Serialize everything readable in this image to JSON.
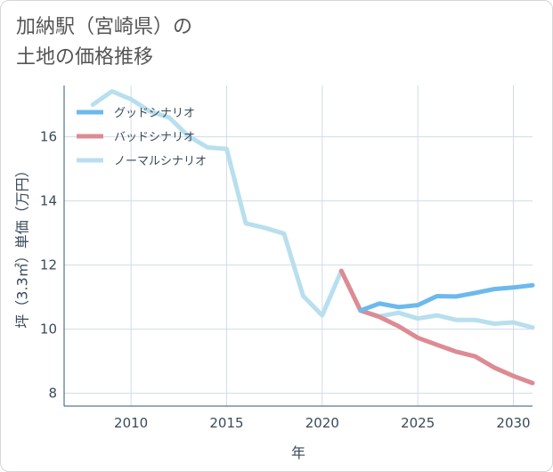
{
  "title": {
    "line1": "加納駅（宮崎県）の",
    "line2": "土地の価格推移"
  },
  "chart_data": {
    "type": "line",
    "xlabel": "年",
    "ylabel": "坪（3.3㎡）単価（万円）",
    "xlim": [
      2006.5,
      2031
    ],
    "ylim": [
      7.6,
      17.6
    ],
    "x_ticks": [
      2010,
      2015,
      2020,
      2025,
      2030
    ],
    "y_ticks": [
      8,
      10,
      12,
      14,
      16
    ],
    "grid": true,
    "legend_position": "top-left",
    "series": [
      {
        "name": "グッドシナリオ",
        "color": "#6cb9ed",
        "x": [
          2022,
          2023,
          2024,
          2025,
          2026,
          2027,
          2028,
          2029,
          2030,
          2031
        ],
        "y": [
          10.58,
          10.8,
          10.69,
          10.75,
          11.03,
          11.02,
          11.13,
          11.25,
          11.3,
          11.37
        ]
      },
      {
        "name": "バッドシナリオ",
        "color": "#dd8b93",
        "x": [
          2021,
          2022,
          2023,
          2024,
          2025,
          2026,
          2027,
          2028,
          2029,
          2030,
          2031
        ],
        "y": [
          11.82,
          10.58,
          10.38,
          10.09,
          9.73,
          9.51,
          9.3,
          9.15,
          8.8,
          8.54,
          8.32
        ]
      },
      {
        "name": "ノーマルシナリオ",
        "color": "#b8dfee",
        "x": [
          2008,
          2009,
          2010,
          2011,
          2012,
          2013,
          2014,
          2015,
          2016,
          2017,
          2018,
          2019,
          2020,
          2021,
          2022,
          2023,
          2024,
          2025,
          2026,
          2027,
          2028,
          2029,
          2030,
          2031
        ],
        "y": [
          17.0,
          17.42,
          17.17,
          16.79,
          16.6,
          16.02,
          15.67,
          15.62,
          13.3,
          13.16,
          12.98,
          11.04,
          10.43,
          11.82,
          10.58,
          10.4,
          10.51,
          10.33,
          10.43,
          10.29,
          10.29,
          10.17,
          10.21,
          10.05
        ]
      }
    ]
  }
}
